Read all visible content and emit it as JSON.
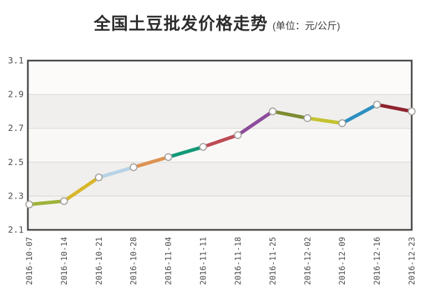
{
  "title": {
    "main": "全国土豆批发价格走势",
    "unit": "(单位：元/公斤)"
  },
  "chart_data": {
    "type": "line",
    "title": "全国土豆批发价格走势",
    "unit_label": "(单位：元/公斤)",
    "x": [
      "2016-10-07",
      "2016-10-14",
      "2016-10-21",
      "2016-10-28",
      "2016-11-04",
      "2016-11-11",
      "2016-11-18",
      "2016-11-25",
      "2016-12-02",
      "2016-12-09",
      "2016-12-16",
      "2016-12-23"
    ],
    "series": [
      {
        "name": "全国土豆批发价格",
        "values": [
          2.25,
          2.27,
          2.41,
          2.47,
          2.53,
          2.59,
          2.66,
          2.8,
          2.76,
          2.73,
          2.84,
          2.8
        ]
      }
    ],
    "ylim": [
      2.1,
      3.1
    ],
    "yticks": [
      2.1,
      2.3,
      2.5,
      2.7,
      2.9,
      3.1
    ],
    "grid": true,
    "legend_position": "none",
    "segment_colors": [
      "#9db33a",
      "#d7b62a",
      "#b7d3e6",
      "#de9350",
      "#129877",
      "#bc4b55",
      "#8c4b9b",
      "#7d8c33",
      "#c3c22e",
      "#2e8fc0",
      "#8e232e"
    ],
    "marker": {
      "fill": "#ffffff",
      "stroke": "#a6a29e"
    },
    "colors": {
      "grid": "#d9d7d5",
      "border": "#4a4a4a",
      "tick_text": "#4c4c4c",
      "band_colors": [
        "#fcfbfa",
        "#f0efed",
        "#f9f8f6",
        "#f0efed",
        "#f5f4f2"
      ]
    }
  }
}
